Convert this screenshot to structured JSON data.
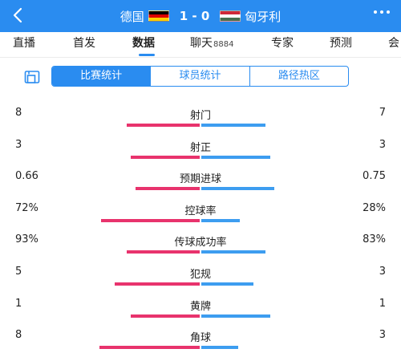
{
  "header": {
    "home_team": "德国",
    "away_team": "匈牙利",
    "score": "1 - 0"
  },
  "tabs": [
    {
      "label": "直播",
      "count": ""
    },
    {
      "label": "首发",
      "count": ""
    },
    {
      "label": "数据",
      "count": "",
      "active": true
    },
    {
      "label": "聊天",
      "count": "8884"
    },
    {
      "label": "专家",
      "count": ""
    },
    {
      "label": "预测",
      "count": ""
    },
    {
      "label": "会",
      "count": ""
    }
  ],
  "segments": [
    {
      "label": "比赛统计",
      "active": true
    },
    {
      "label": "球员统计",
      "active": false
    },
    {
      "label": "路径热区",
      "active": false
    }
  ],
  "colors": {
    "accent": "#2a8cf0",
    "home_bar": "#e8336d",
    "away_bar": "#3d9df0"
  },
  "stats": [
    {
      "name": "射门",
      "home": "8",
      "away": "7",
      "home_share": 0.53,
      "away_share": 0.47
    },
    {
      "name": "射正",
      "home": "3",
      "away": "3",
      "home_share": 0.5,
      "away_share": 0.5
    },
    {
      "name": "预期进球",
      "home": "0.66",
      "away": "0.75",
      "home_share": 0.47,
      "away_share": 0.53
    },
    {
      "name": "控球率",
      "home": "72%",
      "away": "28%",
      "home_share": 0.72,
      "away_share": 0.28
    },
    {
      "name": "传球成功率",
      "home": "93%",
      "away": "83%",
      "home_share": 0.53,
      "away_share": 0.47
    },
    {
      "name": "犯规",
      "home": "5",
      "away": "3",
      "home_share": 0.62,
      "away_share": 0.38
    },
    {
      "name": "黄牌",
      "home": "1",
      "away": "1",
      "home_share": 0.5,
      "away_share": 0.5
    },
    {
      "name": "角球",
      "home": "8",
      "away": "3",
      "home_share": 0.73,
      "away_share": 0.27
    }
  ]
}
